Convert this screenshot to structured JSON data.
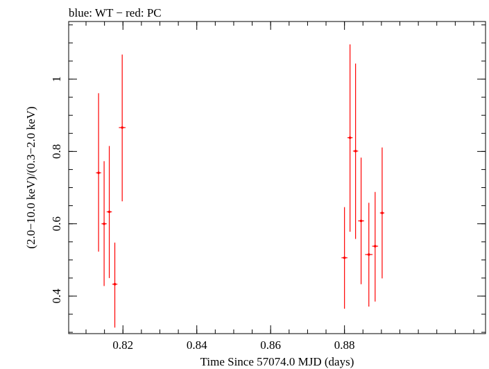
{
  "chart_data": {
    "type": "scatter",
    "title": "blue: WT − red: PC",
    "xlabel": "Time Since 57074.0 MJD (days)",
    "ylabel": "(2.0−10.0 keV)/(0.3−2.0 keV)",
    "xlim": [
      0.8053,
      0.9182
    ],
    "ylim": [
      0.2963,
      1.1593
    ],
    "x_ticks": [
      "0.82",
      "0.84",
      "0.86",
      "0.88"
    ],
    "y_ticks": [
      "0.4",
      "0.6",
      "0.8",
      "1"
    ],
    "x_tick_values": [
      0.82,
      0.84,
      0.86,
      0.88
    ],
    "y_tick_values": [
      0.4,
      0.6,
      0.8,
      1.0
    ],
    "x_minor_step": 0.005,
    "y_minor_step": 0.05,
    "grid": false,
    "series": [
      {
        "color": "#ff0000",
        "points": [
          {
            "x": 0.8134,
            "y": 0.741,
            "xerr": 0.0007,
            "ylo": 0.523,
            "yhi": 0.961
          },
          {
            "x": 0.8149,
            "y": 0.6,
            "xerr": 0.0007,
            "ylo": 0.428,
            "yhi": 0.773
          },
          {
            "x": 0.8163,
            "y": 0.633,
            "xerr": 0.0007,
            "ylo": 0.45,
            "yhi": 0.815
          },
          {
            "x": 0.8178,
            "y": 0.433,
            "xerr": 0.0007,
            "ylo": 0.313,
            "yhi": 0.548
          },
          {
            "x": 0.8198,
            "y": 0.866,
            "xerr": 0.0009,
            "ylo": 0.662,
            "yhi": 1.068
          },
          {
            "x": 0.88,
            "y": 0.506,
            "xerr": 0.0008,
            "ylo": 0.365,
            "yhi": 0.646
          },
          {
            "x": 0.8815,
            "y": 0.838,
            "xerr": 0.0007,
            "ylo": 0.578,
            "yhi": 1.096
          },
          {
            "x": 0.883,
            "y": 0.801,
            "xerr": 0.0007,
            "ylo": 0.558,
            "yhi": 1.043
          },
          {
            "x": 0.8845,
            "y": 0.608,
            "xerr": 0.0008,
            "ylo": 0.433,
            "yhi": 0.783
          },
          {
            "x": 0.8866,
            "y": 0.515,
            "xerr": 0.001,
            "ylo": 0.371,
            "yhi": 0.658
          },
          {
            "x": 0.8883,
            "y": 0.538,
            "xerr": 0.0008,
            "ylo": 0.385,
            "yhi": 0.688
          },
          {
            "x": 0.8902,
            "y": 0.63,
            "xerr": 0.0006,
            "ylo": 0.449,
            "yhi": 0.811
          }
        ]
      }
    ]
  }
}
